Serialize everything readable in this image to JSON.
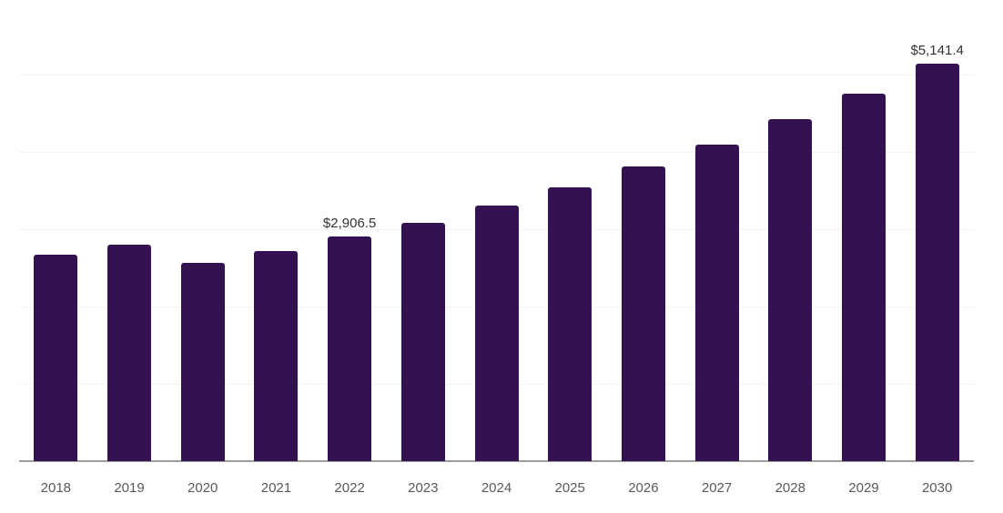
{
  "chart_data": {
    "type": "bar",
    "title": "",
    "xlabel": "",
    "ylabel": "",
    "categories": [
      "2018",
      "2019",
      "2020",
      "2021",
      "2022",
      "2023",
      "2024",
      "2025",
      "2026",
      "2027",
      "2028",
      "2029",
      "2030"
    ],
    "values": [
      2670,
      2805,
      2560,
      2720,
      2906.5,
      3080,
      3300,
      3545,
      3815,
      4090,
      4420,
      4755,
      5141.4
    ],
    "data_labels": {
      "2022": "$2,906.5",
      "2030": "$5,141.4"
    },
    "ylim": [
      0,
      5500
    ],
    "gridlines": [
      1000,
      2000,
      3000,
      4000,
      5000
    ],
    "grid": "horizontal",
    "legend_position": "none",
    "colors": {
      "bar": "#341150",
      "axis_line": "#9e9e9e",
      "gridline": "#f4f4f4",
      "tick_label": "#595959",
      "data_label": "#333333",
      "background": "#ffffff"
    }
  }
}
